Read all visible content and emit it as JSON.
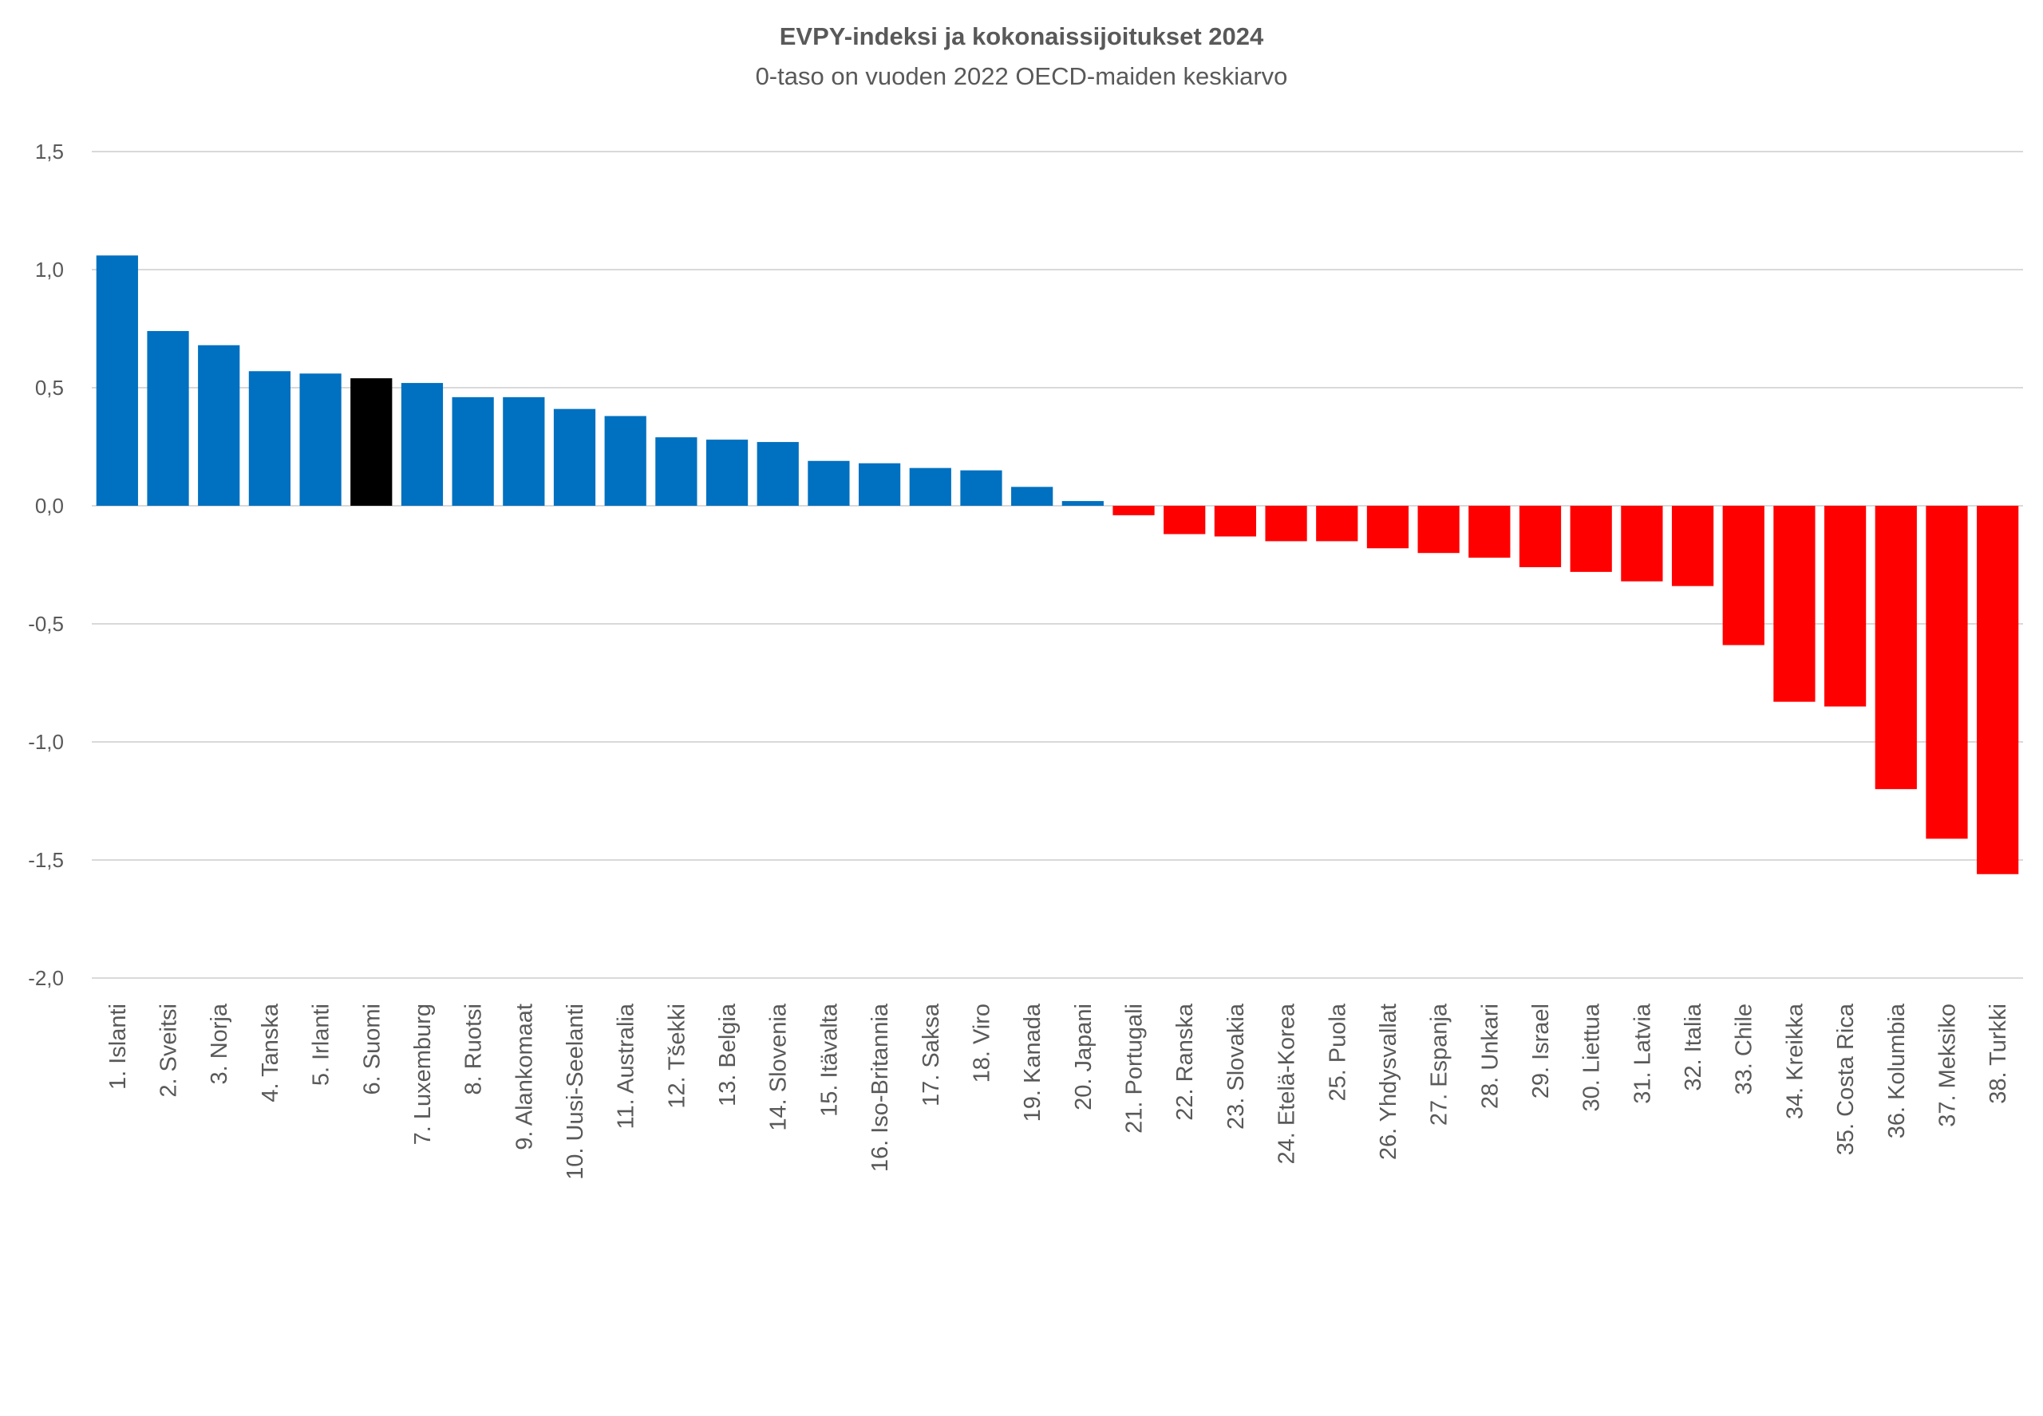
{
  "chart_data": {
    "type": "bar",
    "title": "EVPY-indeksi ja kokonaissijoitukset 2024",
    "subtitle": "0-taso on vuoden 2022 OECD-maiden keskiarvo",
    "xlabel": "",
    "ylabel": "",
    "ylim": [
      -2.0,
      1.5
    ],
    "yticks": [
      "1,5",
      "1,0",
      "0,5",
      "0,0",
      "-0,5",
      "-1,0",
      "-1,5",
      "-2,0"
    ],
    "ytick_values": [
      1.5,
      1.0,
      0.5,
      0.0,
      -0.5,
      -1.0,
      -1.5,
      -2.0
    ],
    "grid": true,
    "legend": "none",
    "colors": {
      "positive": "#0070C0",
      "negative": "#FF0000",
      "highlight": "#000000",
      "grid": "#D9D9D9"
    },
    "highlight_category": "6. Suomi",
    "categories": [
      "1. Islanti",
      "2. Sveitsi",
      "3. Norja",
      "4. Tanska",
      "5. Irlanti",
      "6. Suomi",
      "7. Luxemburg",
      "8. Ruotsi",
      "9. Alankomaat",
      "10. Uusi-Seelanti",
      "11. Australia",
      "12. Tšekki",
      "13. Belgia",
      "14. Slovenia",
      "15. Itävalta",
      "16. Iso-Britannia",
      "17. Saksa",
      "18. Viro",
      "19. Kanada",
      "20. Japani",
      "21. Portugali",
      "22. Ranska",
      "23. Slovakia",
      "24. Etelä-Korea",
      "25. Puola",
      "26. Yhdysvallat",
      "27. Espanja",
      "28. Unkari",
      "29. Israel",
      "30. Liettua",
      "31. Latvia",
      "32. Italia",
      "33. Chile",
      "34. Kreikka",
      "35. Costa Rica",
      "36. Kolumbia",
      "37. Meksiko",
      "38. Turkki"
    ],
    "values": [
      1.06,
      0.74,
      0.68,
      0.57,
      0.56,
      0.54,
      0.52,
      0.46,
      0.46,
      0.41,
      0.38,
      0.29,
      0.28,
      0.27,
      0.19,
      0.18,
      0.16,
      0.15,
      0.08,
      0.02,
      -0.04,
      -0.12,
      -0.13,
      -0.15,
      -0.15,
      -0.18,
      -0.2,
      -0.22,
      -0.26,
      -0.28,
      -0.32,
      -0.34,
      -0.59,
      -0.83,
      -0.85,
      -1.2,
      -1.41,
      -1.56
    ]
  }
}
